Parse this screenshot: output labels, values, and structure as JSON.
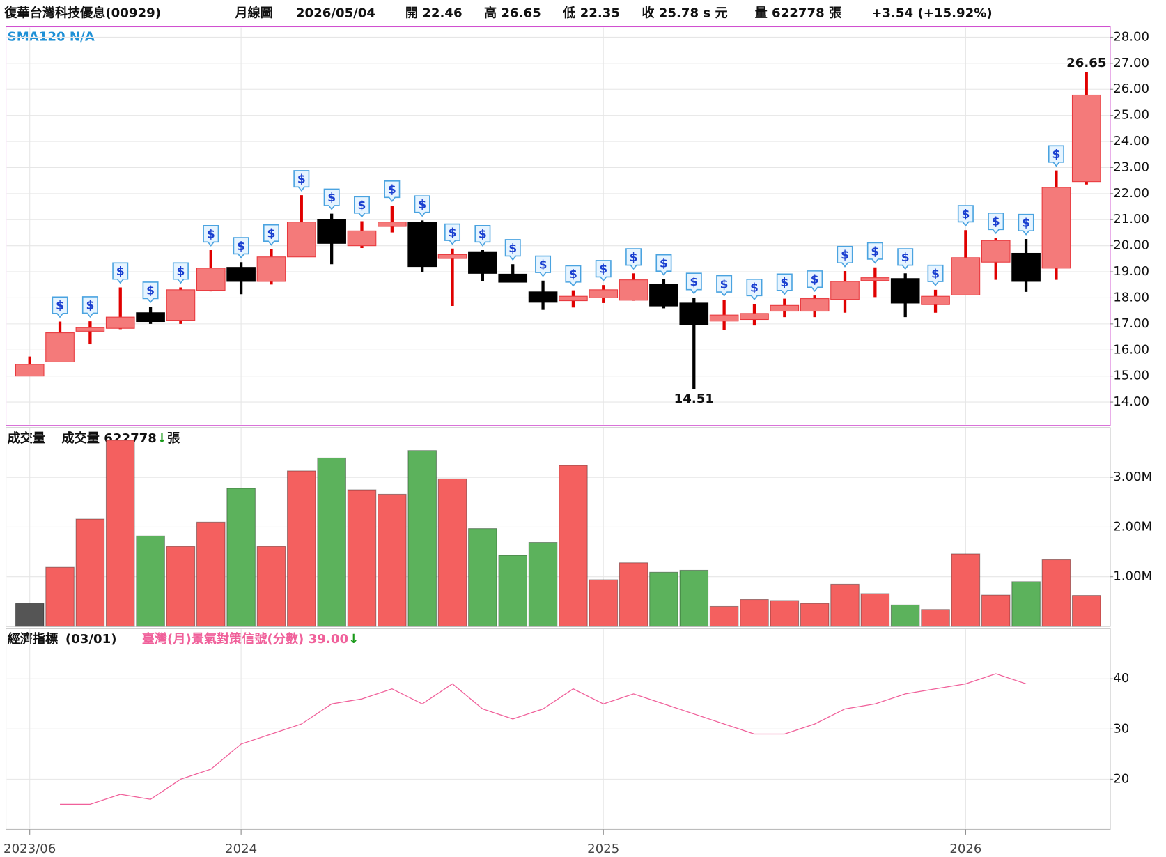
{
  "header": {
    "title": "復華台灣科技優息(00929)",
    "period": "月線圖",
    "date": "2026/05/04",
    "open": "開 22.46",
    "high": "高 26.65",
    "low": "低 22.35",
    "close": "收 25.78 s 元",
    "volume": "量 622778 張",
    "change": "+3.54 (+15.92%)"
  },
  "chart_data": [
    {
      "type": "candlestick",
      "indicator": "SMA120 N/A",
      "categories": [
        "2023/06",
        null,
        null,
        null,
        null,
        null,
        null,
        "2024",
        null,
        null,
        null,
        null,
        null,
        null,
        null,
        null,
        null,
        null,
        null,
        "2025",
        null,
        null,
        null,
        null,
        null,
        null,
        null,
        null,
        null,
        null,
        null,
        "2026",
        null,
        null,
        null,
        null
      ],
      "open": [
        15.0,
        15.54,
        16.72,
        16.83,
        17.43,
        17.14,
        18.29,
        19.17,
        18.63,
        19.57,
        21.0,
        20.0,
        20.74,
        20.91,
        19.51,
        19.77,
        18.91,
        18.23,
        17.89,
        18.0,
        17.91,
        18.51,
        17.8,
        17.11,
        17.17,
        17.49,
        17.49,
        17.94,
        18.66,
        18.74,
        17.74,
        18.11,
        19.37,
        19.71,
        19.14,
        22.46
      ],
      "high": [
        15.75,
        17.09,
        17.1,
        18.4,
        17.66,
        18.4,
        19.83,
        19.37,
        19.86,
        21.94,
        21.23,
        20.94,
        21.54,
        20.97,
        19.89,
        19.83,
        19.29,
        18.66,
        18.29,
        18.49,
        18.94,
        18.71,
        18.0,
        17.91,
        17.77,
        17.97,
        18.09,
        19.03,
        19.17,
        18.94,
        18.31,
        20.6,
        20.31,
        20.26,
        22.89,
        26.65
      ],
      "low": [
        15.0,
        15.54,
        16.22,
        16.8,
        17.0,
        17.0,
        18.25,
        18.14,
        18.51,
        19.57,
        19.29,
        19.91,
        20.51,
        19.0,
        17.69,
        18.63,
        18.6,
        17.54,
        17.63,
        17.8,
        17.89,
        17.6,
        14.51,
        16.77,
        16.94,
        17.26,
        17.26,
        17.43,
        18.03,
        17.26,
        17.43,
        18.11,
        18.69,
        18.23,
        18.69,
        22.35
      ],
      "close": [
        15.45,
        16.66,
        16.86,
        17.26,
        17.09,
        18.31,
        19.14,
        18.63,
        19.57,
        20.91,
        20.09,
        20.57,
        20.91,
        19.2,
        19.66,
        18.94,
        18.6,
        17.83,
        18.06,
        18.31,
        18.69,
        17.69,
        16.97,
        17.34,
        17.4,
        17.71,
        17.97,
        18.63,
        18.77,
        17.8,
        18.06,
        19.54,
        20.2,
        18.63,
        22.24,
        25.78
      ],
      "up_color": "#f47a7a",
      "up_edge": "#e8383d",
      "down_color": "#000000",
      "marker_label": "$",
      "markers": [
        1,
        2,
        3,
        4,
        5,
        6,
        7,
        8,
        9,
        10,
        11,
        12,
        13,
        14,
        15,
        16,
        17,
        18,
        19,
        20,
        21,
        22,
        23,
        24,
        25,
        26,
        27,
        28,
        29,
        30,
        31,
        32,
        33,
        34
      ],
      "ylim": [
        13.1,
        28.4
      ],
      "yticks": [
        {
          "value": 14,
          "label": "14.00"
        },
        {
          "value": 15,
          "label": "15.00"
        },
        {
          "value": 16,
          "label": "16.00"
        },
        {
          "value": 17,
          "label": "17.00"
        },
        {
          "value": 18,
          "label": "18.00"
        },
        {
          "value": 19,
          "label": "19.00"
        },
        {
          "value": 20,
          "label": "20.00"
        },
        {
          "value": 21,
          "label": "21.00"
        },
        {
          "value": 22,
          "label": "22.00"
        },
        {
          "value": 23,
          "label": "23.00"
        },
        {
          "value": 24,
          "label": "24.00"
        },
        {
          "value": 25,
          "label": "25.00"
        },
        {
          "value": 26,
          "label": "26.00"
        },
        {
          "value": 27,
          "label": "27.00"
        },
        {
          "value": 28,
          "label": "28.00"
        }
      ],
      "grid": true
    },
    {
      "type": "bar",
      "title": "成交量",
      "legend": "成交量 622778",
      "trend": "↓",
      "unit": "張",
      "values": [
        460000,
        1190000,
        2160000,
        3750000,
        1820000,
        1610000,
        2100000,
        2780000,
        1610000,
        3130000,
        3390000,
        2750000,
        2660000,
        3540000,
        2970000,
        1970000,
        1430000,
        1690000,
        3240000,
        940000,
        1280000,
        1090000,
        1130000,
        400000,
        540000,
        520000,
        460000,
        850000,
        660000,
        430000,
        340000,
        1460000,
        630000,
        900000,
        1340000,
        622778
      ],
      "up_color": "#f4605f",
      "down_color": "#5cb25c",
      "flat_color": "#555555",
      "ylim": [
        0,
        4000000
      ],
      "yticks": [
        {
          "value": 1000000,
          "label": "1.00M"
        },
        {
          "value": 2000000,
          "label": "2.00M"
        },
        {
          "value": 3000000,
          "label": "3.00M"
        }
      ],
      "grid": true
    },
    {
      "type": "line",
      "title": "經濟指標",
      "date": "(03/01)",
      "trend": "↓",
      "series": [
        {
          "name": "臺灣(月)景氣對策信號(分數)",
          "value_label": "39.00",
          "color": "#f0609a",
          "values": [
            null,
            15,
            15,
            17,
            16,
            20,
            22,
            27,
            29,
            31,
            35,
            36,
            38,
            35,
            39,
            34,
            32,
            34,
            38,
            35,
            37,
            35,
            33,
            31,
            29,
            29,
            31,
            34,
            35,
            37,
            38,
            39,
            41,
            39,
            null,
            null
          ]
        }
      ],
      "ylim": [
        10,
        50
      ],
      "yticks": [
        20,
        30,
        40
      ],
      "grid": true
    }
  ]
}
